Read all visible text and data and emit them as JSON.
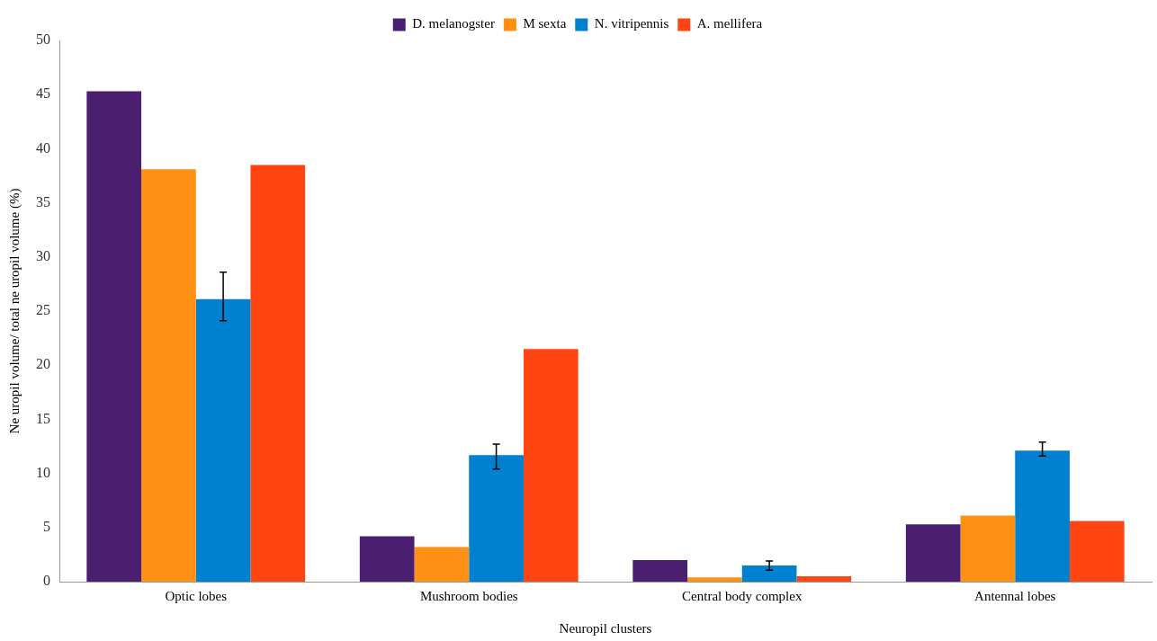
{
  "chart_data": {
    "type": "bar",
    "xlabel": "Neuropil clusters",
    "ylabel": "Ne uropil volume/ total ne uropil volume (%)",
    "categories": [
      "Optic lobes",
      "Mushroom bodies",
      "Central body complex",
      "Antennal lobes"
    ],
    "series": [
      {
        "name": "D. melanogster",
        "color": "#4b1f6f",
        "values": [
          45.3,
          4.2,
          2.0,
          5.3
        ]
      },
      {
        "name": "M sexta",
        "color": "#ff9014",
        "values": [
          38.1,
          3.2,
          0.4,
          6.1
        ]
      },
      {
        "name": "N. vitripennis",
        "color": "#0080d0",
        "values": [
          26.1,
          11.7,
          1.5,
          12.1
        ],
        "errors": [
          [
            24.1,
            28.6
          ],
          [
            10.4,
            12.7
          ],
          [
            1.05,
            1.9
          ],
          [
            11.6,
            12.9
          ]
        ]
      },
      {
        "name": "A. mellifera",
        "color": "#ff4512",
        "values": [
          38.5,
          21.5,
          0.5,
          5.6
        ]
      }
    ],
    "ylim": [
      0,
      50
    ],
    "yticks": [
      0,
      5,
      10,
      15,
      20,
      25,
      30,
      35,
      40,
      45,
      50
    ],
    "grid": false,
    "legend": "top"
  }
}
